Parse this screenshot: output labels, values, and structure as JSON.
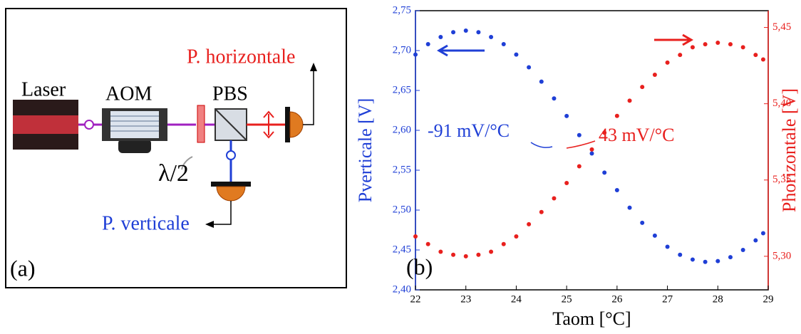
{
  "diagram": {
    "laser": "Laser",
    "aom": "AOM",
    "pbs": "PBS",
    "p_horizontal": "P. horizontale",
    "waveplate": "λ/2",
    "p_vertical": "P. verticale",
    "panel": "(a)"
  },
  "chart_data": {
    "type": "scatter",
    "panel": "(b)",
    "xlabel": "Taom [°C]",
    "ylabel": "Pverticale [V]",
    "y2label": "Phorizontale [V]",
    "annotations": [
      "-91 mV/°C",
      "43 mV/°C"
    ],
    "xlim": [
      22,
      29
    ],
    "xticks": [
      22,
      23,
      24,
      25,
      26,
      27,
      28,
      29
    ],
    "ylim": [
      2.4,
      2.75
    ],
    "yticks": [
      {
        "value": 2.4,
        "label": "2,40"
      },
      {
        "value": 2.45,
        "label": "2,45"
      },
      {
        "value": 2.5,
        "label": "2,50"
      },
      {
        "value": 2.55,
        "label": "2,55"
      },
      {
        "value": 2.6,
        "label": "2,60"
      },
      {
        "value": 2.65,
        "label": "2,65"
      },
      {
        "value": 2.7,
        "label": "2,70"
      },
      {
        "value": 2.75,
        "label": "2,75"
      }
    ],
    "y2lim": [
      5.278,
      5.461
    ],
    "y2ticks": [
      {
        "value": 5.3,
        "label": "5,30"
      },
      {
        "value": 5.35,
        "label": "5,35"
      },
      {
        "value": 5.4,
        "label": "5,40"
      },
      {
        "value": 5.45,
        "label": "5,45"
      }
    ],
    "x": [
      22,
      22.25,
      22.5,
      22.75,
      23,
      23.25,
      23.5,
      23.75,
      24,
      24.25,
      24.5,
      24.75,
      25,
      25.25,
      25.5,
      25.75,
      26,
      26.25,
      26.5,
      26.75,
      27,
      27.25,
      27.5,
      27.75,
      28,
      28.25,
      28.5,
      28.75,
      28.9
    ],
    "series": [
      {
        "name": "Pverticale",
        "color": "#1f3fd6",
        "axis": "y",
        "values": [
          2.695,
          2.708,
          2.717,
          2.723,
          2.725,
          2.723,
          2.717,
          2.708,
          2.695,
          2.679,
          2.661,
          2.64,
          2.618,
          2.594,
          2.571,
          2.547,
          2.525,
          2.503,
          2.484,
          2.468,
          2.454,
          2.444,
          2.438,
          2.435,
          2.436,
          2.441,
          2.45,
          2.462,
          2.471
        ]
      },
      {
        "name": "Phorizontale",
        "color": "#e8201e",
        "axis": "y2",
        "values": [
          5.313,
          5.308,
          5.303,
          5.301,
          5.3,
          5.301,
          5.303,
          5.308,
          5.313,
          5.321,
          5.329,
          5.338,
          5.348,
          5.359,
          5.37,
          5.381,
          5.392,
          5.402,
          5.411,
          5.419,
          5.427,
          5.432,
          5.437,
          5.439,
          5.44,
          5.439,
          5.437,
          5.432,
          5.429
        ]
      }
    ]
  }
}
